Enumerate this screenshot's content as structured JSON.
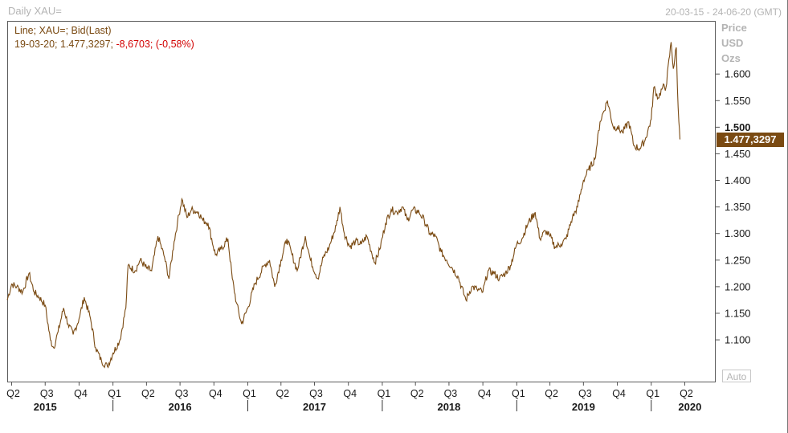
{
  "header": {
    "title": "Daily XAU=",
    "date_range": "20-03-15 - 24-06-20 (GMT)"
  },
  "legend": {
    "line1": "Line; XAU=; Bid(Last)",
    "line2_prefix": "19-03-20; 1.477,3297; ",
    "line2_change": "-8,6703; (-0,58%)"
  },
  "y_axis_header": [
    "Price",
    "USD",
    "Ozs"
  ],
  "last_value_label": "1.477,3297",
  "auto_button": "Auto",
  "colors": {
    "line": "#7a4a12",
    "negative": "#d20000",
    "muted": "#b4b4b4"
  },
  "chart_data": {
    "type": "line",
    "series": [
      {
        "x": [
          "2015-03-20",
          "2015-04-01",
          "2015-04-15",
          "2015-05-01",
          "2015-05-18",
          "2015-06-01",
          "2015-06-15",
          "2015-07-01",
          "2015-07-15",
          "2015-07-24",
          "2015-08-05",
          "2015-08-20",
          "2015-09-01",
          "2015-09-15",
          "2015-10-01",
          "2015-10-15",
          "2015-11-01",
          "2015-11-15",
          "2015-12-01",
          "2015-12-17",
          "2016-01-01",
          "2016-01-20",
          "2016-02-05",
          "2016-02-11",
          "2016-03-01",
          "2016-03-15",
          "2016-04-01",
          "2016-04-15",
          "2016-05-02",
          "2016-05-20",
          "2016-06-01",
          "2016-06-15",
          "2016-06-24",
          "2016-07-06",
          "2016-07-20",
          "2016-08-01",
          "2016-08-20",
          "2016-09-01",
          "2016-09-15",
          "2016-10-05",
          "2016-10-20",
          "2016-11-08",
          "2016-11-20",
          "2016-12-01",
          "2016-12-15",
          "2017-01-01",
          "2017-01-20",
          "2017-02-15",
          "2017-03-01",
          "2017-03-15",
          "2017-04-01",
          "2017-04-17",
          "2017-05-01",
          "2017-05-15",
          "2017-06-06",
          "2017-06-20",
          "2017-07-10",
          "2017-07-25",
          "2017-08-10",
          "2017-08-29",
          "2017-09-08",
          "2017-09-20",
          "2017-10-05",
          "2017-10-20",
          "2017-11-05",
          "2017-11-20",
          "2017-12-12",
          "2017-12-25",
          "2018-01-10",
          "2018-01-25",
          "2018-02-10",
          "2018-02-25",
          "2018-03-10",
          "2018-03-25",
          "2018-04-11",
          "2018-04-25",
          "2018-05-10",
          "2018-05-25",
          "2018-06-10",
          "2018-06-25",
          "2018-07-10",
          "2018-07-25",
          "2018-08-16",
          "2018-09-01",
          "2018-09-15",
          "2018-10-01",
          "2018-10-15",
          "2018-11-01",
          "2018-11-15",
          "2018-12-01",
          "2018-12-15",
          "2019-01-01",
          "2019-01-15",
          "2019-02-01",
          "2019-02-20",
          "2019-03-05",
          "2019-03-20",
          "2019-04-01",
          "2019-04-15",
          "2019-05-01",
          "2019-05-15",
          "2019-06-01",
          "2019-06-15",
          "2019-07-01",
          "2019-07-15",
          "2019-08-01",
          "2019-08-15",
          "2019-09-04",
          "2019-09-20",
          "2019-10-01",
          "2019-10-15",
          "2019-11-01",
          "2019-11-15",
          "2019-12-01",
          "2019-12-15",
          "2020-01-01",
          "2020-01-08",
          "2020-01-20",
          "2020-02-01",
          "2020-02-10",
          "2020-02-24",
          "2020-03-01",
          "2020-03-09",
          "2020-03-12",
          "2020-03-16",
          "2020-03-19"
        ],
        "values": [
          1175,
          1205,
          1200,
          1190,
          1225,
          1190,
          1180,
          1165,
          1100,
          1085,
          1115,
          1160,
          1130,
          1110,
          1140,
          1180,
          1140,
          1085,
          1060,
          1050,
          1075,
          1100,
          1160,
          1240,
          1230,
          1250,
          1235,
          1230,
          1295,
          1255,
          1215,
          1285,
          1320,
          1365,
          1330,
          1345,
          1340,
          1325,
          1320,
          1260,
          1270,
          1290,
          1215,
          1170,
          1130,
          1160,
          1205,
          1240,
          1250,
          1200,
          1250,
          1290,
          1260,
          1230,
          1295,
          1250,
          1215,
          1255,
          1275,
          1315,
          1350,
          1300,
          1275,
          1285,
          1280,
          1295,
          1245,
          1270,
          1320,
          1345,
          1340,
          1350,
          1325,
          1345,
          1340,
          1325,
          1300,
          1295,
          1265,
          1250,
          1235,
          1220,
          1175,
          1200,
          1195,
          1190,
          1230,
          1225,
          1215,
          1225,
          1240,
          1280,
          1290,
          1320,
          1340,
          1290,
          1305,
          1295,
          1275,
          1280,
          1290,
          1330,
          1350,
          1400,
          1420,
          1440,
          1510,
          1550,
          1500,
          1500,
          1490,
          1510,
          1465,
          1460,
          1475,
          1515,
          1575,
          1555,
          1575,
          1575,
          1660,
          1610,
          1650,
          1575,
          1510,
          1477
        ]
      }
    ],
    "ylim": [
      1020,
      1700
    ],
    "y_ticks": [
      "1.100",
      "1.150",
      "1.200",
      "1.250",
      "1.300",
      "1.350",
      "1.400",
      "1.450",
      "1.500",
      "1.550",
      "1.600"
    ],
    "y_tick_values": [
      1100,
      1150,
      1200,
      1250,
      1300,
      1350,
      1400,
      1450,
      1500,
      1550,
      1600
    ],
    "x_range": [
      "2015-03-20",
      "2020-06-24"
    ],
    "x_quarter_labels": [
      {
        "date": "2015-04-01",
        "label": "Q2"
      },
      {
        "date": "2015-07-01",
        "label": "Q3"
      },
      {
        "date": "2015-10-01",
        "label": "Q4"
      },
      {
        "date": "2016-01-01",
        "label": "Q1"
      },
      {
        "date": "2016-04-01",
        "label": "Q2"
      },
      {
        "date": "2016-07-01",
        "label": "Q3"
      },
      {
        "date": "2016-10-01",
        "label": "Q4"
      },
      {
        "date": "2017-01-01",
        "label": "Q1"
      },
      {
        "date": "2017-04-01",
        "label": "Q2"
      },
      {
        "date": "2017-07-01",
        "label": "Q3"
      },
      {
        "date": "2017-10-01",
        "label": "Q4"
      },
      {
        "date": "2018-01-01",
        "label": "Q1"
      },
      {
        "date": "2018-04-01",
        "label": "Q2"
      },
      {
        "date": "2018-07-01",
        "label": "Q3"
      },
      {
        "date": "2018-10-01",
        "label": "Q4"
      },
      {
        "date": "2019-01-01",
        "label": "Q1"
      },
      {
        "date": "2019-04-01",
        "label": "Q2"
      },
      {
        "date": "2019-07-01",
        "label": "Q3"
      },
      {
        "date": "2019-10-01",
        "label": "Q4"
      },
      {
        "date": "2020-01-01",
        "label": "Q1"
      },
      {
        "date": "2020-04-01",
        "label": "Q2"
      }
    ],
    "x_year_labels": [
      {
        "date": "2015-07-01",
        "label": "2015"
      },
      {
        "date": "2016-07-01",
        "label": "2016"
      },
      {
        "date": "2017-07-01",
        "label": "2017"
      },
      {
        "date": "2018-07-01",
        "label": "2018"
      },
      {
        "date": "2019-07-01",
        "label": "2019"
      },
      {
        "date": "2020-04-15",
        "label": "2020"
      }
    ],
    "x_year_boundaries": [
      "2016-01-01",
      "2017-01-01",
      "2018-01-01",
      "2019-01-01",
      "2020-01-01"
    ],
    "grid": false
  }
}
